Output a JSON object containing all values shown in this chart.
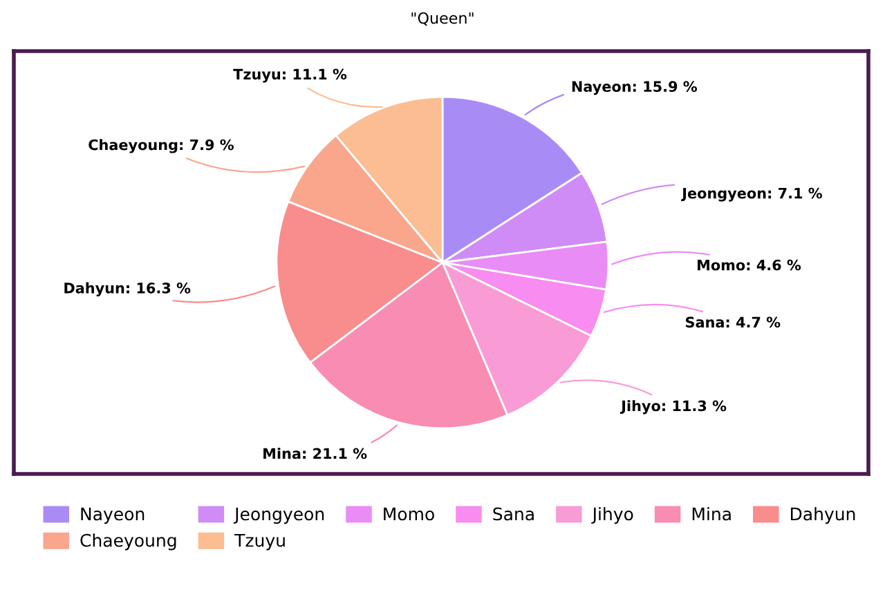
{
  "chart_data": {
    "type": "pie",
    "title": "\"Queen\"",
    "categories": [
      "Nayeon",
      "Jeongyeon",
      "Momo",
      "Sana",
      "Jihyo",
      "Mina",
      "Dahyun",
      "Chaeyoung",
      "Tzuyu"
    ],
    "values": [
      15.9,
      7.1,
      4.6,
      4.7,
      11.3,
      21.1,
      16.3,
      7.9,
      11.1
    ],
    "colors": [
      "#a98bf6",
      "#d08cf6",
      "#e98cf6",
      "#f88cf0",
      "#f99bd5",
      "#f98cb2",
      "#f98c8c",
      "#f9a68c",
      "#fbbd91"
    ],
    "value_labels": [
      "Nayeon: 15.9 %",
      "Jeongyeon: 7.1 %",
      "Momo: 4.6 %",
      "Sana: 4.7 %",
      "Jihyo: 11.3 %",
      "Mina: 21.1 %",
      "Dahyun: 16.3 %",
      "Chaeyoung: 7.9 %",
      "Tzuyu: 11.1 %"
    ],
    "legend": "bottom"
  }
}
